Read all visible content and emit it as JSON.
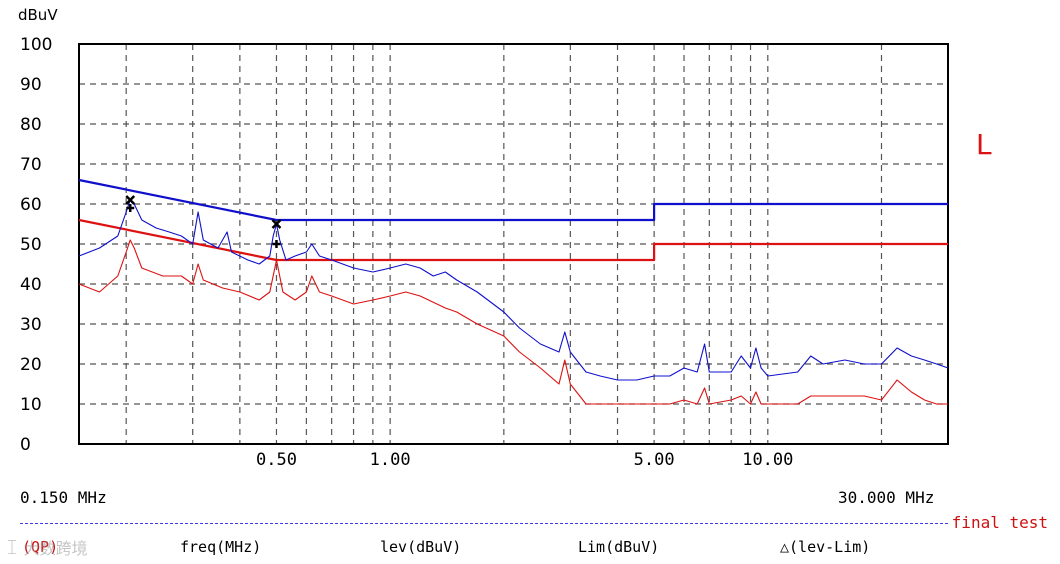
{
  "chart_data": {
    "type": "line",
    "unit_label": "dBuV",
    "trace_label": "L",
    "y_ticks": [
      "100",
      "90",
      "80",
      "70",
      "60",
      "50",
      "40",
      "30",
      "20",
      "10",
      "0"
    ],
    "ylim": [
      0,
      100
    ],
    "x_scale": "log",
    "xlim": [
      0.15,
      30
    ],
    "x_ticks": [
      {
        "value": 0.5,
        "label": "0.50"
      },
      {
        "value": 1.0,
        "label": "1.00"
      },
      {
        "value": 5.0,
        "label": "5.00"
      },
      {
        "value": 10.0,
        "label": "10.00"
      }
    ],
    "x_start_label": "0.150 MHz",
    "x_end_label": "30.000 MHz",
    "vertical_grid": [
      0.2,
      0.3,
      0.4,
      0.5,
      0.6,
      0.7,
      0.8,
      0.9,
      1,
      2,
      3,
      4,
      5,
      6,
      7,
      8,
      9,
      10,
      20
    ],
    "horizontal_grid": [
      10,
      20,
      30,
      40,
      50,
      60,
      70,
      80,
      90
    ],
    "grid": true,
    "series": [
      {
        "color": "#1010cc",
        "style": "limit",
        "points": [
          [
            0.15,
            66
          ],
          [
            0.5,
            56
          ],
          [
            5,
            56
          ],
          [
            5,
            60
          ],
          [
            30,
            60
          ]
        ]
      },
      {
        "color": "#dd1111",
        "style": "limit",
        "points": [
          [
            0.15,
            56
          ],
          [
            0.5,
            46
          ],
          [
            5,
            46
          ],
          [
            5,
            50
          ],
          [
            30,
            50
          ]
        ]
      },
      {
        "color": "#1010cc",
        "style": "measurement",
        "points": [
          [
            0.15,
            47
          ],
          [
            0.17,
            49
          ],
          [
            0.19,
            52
          ],
          [
            0.2,
            58
          ],
          [
            0.205,
            61
          ],
          [
            0.21,
            60
          ],
          [
            0.22,
            56
          ],
          [
            0.24,
            54
          ],
          [
            0.26,
            53
          ],
          [
            0.28,
            52
          ],
          [
            0.3,
            50
          ],
          [
            0.31,
            58
          ],
          [
            0.32,
            51
          ],
          [
            0.35,
            49
          ],
          [
            0.37,
            53
          ],
          [
            0.38,
            48
          ],
          [
            0.42,
            46
          ],
          [
            0.45,
            45
          ],
          [
            0.48,
            47
          ],
          [
            0.49,
            52
          ],
          [
            0.5,
            55
          ],
          [
            0.51,
            51
          ],
          [
            0.53,
            46
          ],
          [
            0.56,
            47
          ],
          [
            0.6,
            48
          ],
          [
            0.62,
            50
          ],
          [
            0.65,
            47
          ],
          [
            0.7,
            46
          ],
          [
            0.8,
            44
          ],
          [
            0.9,
            43
          ],
          [
            1.0,
            44
          ],
          [
            1.1,
            45
          ],
          [
            1.2,
            44
          ],
          [
            1.3,
            42
          ],
          [
            1.4,
            43
          ],
          [
            1.5,
            41
          ],
          [
            1.7,
            38
          ],
          [
            2.0,
            33
          ],
          [
            2.2,
            29
          ],
          [
            2.5,
            25
          ],
          [
            2.8,
            23
          ],
          [
            2.9,
            28
          ],
          [
            3.0,
            23
          ],
          [
            3.3,
            18
          ],
          [
            3.6,
            17
          ],
          [
            4.0,
            16
          ],
          [
            4.5,
            16
          ],
          [
            5.0,
            17
          ],
          [
            5.5,
            17
          ],
          [
            6.0,
            19
          ],
          [
            6.5,
            18
          ],
          [
            6.8,
            25
          ],
          [
            7.0,
            18
          ],
          [
            8.0,
            18
          ],
          [
            8.5,
            22
          ],
          [
            9.0,
            19
          ],
          [
            9.3,
            24
          ],
          [
            9.6,
            19
          ],
          [
            10,
            17
          ],
          [
            12,
            18
          ],
          [
            13,
            22
          ],
          [
            14,
            20
          ],
          [
            16,
            21
          ],
          [
            18,
            20
          ],
          [
            20,
            20
          ],
          [
            22,
            24
          ],
          [
            24,
            22
          ],
          [
            26,
            21
          ],
          [
            28,
            20
          ],
          [
            30,
            19
          ]
        ]
      },
      {
        "color": "#dd1111",
        "style": "measurement",
        "points": [
          [
            0.15,
            40
          ],
          [
            0.17,
            38
          ],
          [
            0.19,
            42
          ],
          [
            0.2,
            48
          ],
          [
            0.205,
            51
          ],
          [
            0.21,
            49
          ],
          [
            0.22,
            44
          ],
          [
            0.25,
            42
          ],
          [
            0.28,
            42
          ],
          [
            0.3,
            40
          ],
          [
            0.31,
            45
          ],
          [
            0.32,
            41
          ],
          [
            0.36,
            39
          ],
          [
            0.4,
            38
          ],
          [
            0.45,
            36
          ],
          [
            0.48,
            38
          ],
          [
            0.5,
            46
          ],
          [
            0.52,
            38
          ],
          [
            0.56,
            36
          ],
          [
            0.6,
            38
          ],
          [
            0.62,
            42
          ],
          [
            0.65,
            38
          ],
          [
            0.7,
            37
          ],
          [
            0.8,
            35
          ],
          [
            0.9,
            36
          ],
          [
            1.0,
            37
          ],
          [
            1.1,
            38
          ],
          [
            1.2,
            37
          ],
          [
            1.4,
            34
          ],
          [
            1.5,
            33
          ],
          [
            1.7,
            30
          ],
          [
            2.0,
            27
          ],
          [
            2.2,
            23
          ],
          [
            2.5,
            19
          ],
          [
            2.8,
            15
          ],
          [
            2.9,
            21
          ],
          [
            3.0,
            15
          ],
          [
            3.3,
            10
          ],
          [
            3.6,
            10
          ],
          [
            4.0,
            10
          ],
          [
            4.5,
            10
          ],
          [
            5.0,
            10
          ],
          [
            5.5,
            10
          ],
          [
            6.0,
            11
          ],
          [
            6.5,
            10
          ],
          [
            6.8,
            14
          ],
          [
            7.0,
            10
          ],
          [
            8.0,
            11
          ],
          [
            8.5,
            12
          ],
          [
            9.0,
            10
          ],
          [
            9.3,
            13
          ],
          [
            9.6,
            10
          ],
          [
            10,
            10
          ],
          [
            12,
            10
          ],
          [
            13,
            12
          ],
          [
            14,
            12
          ],
          [
            16,
            12
          ],
          [
            18,
            12
          ],
          [
            20,
            11
          ],
          [
            22,
            16
          ],
          [
            24,
            13
          ],
          [
            26,
            11
          ],
          [
            28,
            10
          ],
          [
            30,
            10
          ]
        ]
      }
    ],
    "markers": [
      {
        "x": 0.205,
        "y": 61,
        "shape": "x"
      },
      {
        "x": 0.205,
        "y": 59,
        "shape": "plus"
      },
      {
        "x": 0.5,
        "y": 55,
        "shape": "x"
      },
      {
        "x": 0.5,
        "y": 50,
        "shape": "plus"
      }
    ]
  },
  "footer": {
    "final_test": "final test",
    "columns": [
      "(QP)",
      "freq(MHz)",
      "lev(dBuV)",
      "Lim(dBuV)",
      "△(lev-Lim)"
    ]
  },
  "watermark": "大数跨境"
}
